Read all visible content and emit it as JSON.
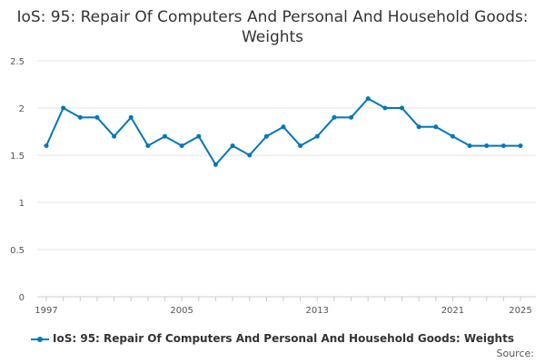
{
  "chart_data": {
    "type": "line",
    "title": "IoS: 95: Repair Of Computers And Personal And Household Goods: Weights",
    "xlabel": "",
    "ylabel": "",
    "x": [
      1997,
      1998,
      1999,
      2000,
      2001,
      2002,
      2003,
      2004,
      2005,
      2006,
      2007,
      2008,
      2009,
      2010,
      2011,
      2012,
      2013,
      2014,
      2015,
      2016,
      2017,
      2018,
      2019,
      2020,
      2021,
      2022,
      2023,
      2024,
      2025
    ],
    "series": [
      {
        "name": "IoS: 95: Repair Of Computers And Personal And Household Goods: Weights",
        "color": "#0077b8",
        "values": [
          1.6,
          2.0,
          1.9,
          1.9,
          1.7,
          1.9,
          1.6,
          1.7,
          1.6,
          1.7,
          1.4,
          1.6,
          1.5,
          1.7,
          1.8,
          1.6,
          1.7,
          1.9,
          1.9,
          2.1,
          2.0,
          2.0,
          1.8,
          1.8,
          1.7,
          1.6,
          1.6,
          1.6,
          1.6
        ]
      }
    ],
    "ylim": [
      0,
      2.5
    ],
    "yticks": [
      0,
      0.5,
      1,
      1.5,
      2,
      2.5
    ],
    "ytick_labels": [
      "0",
      "0.5",
      "1",
      "1.5",
      "2",
      "2.5"
    ],
    "xticks": [
      1997,
      2005,
      2013,
      2021,
      2025
    ],
    "xtick_labels": [
      "1997",
      "2005",
      "2013",
      "2021",
      "2025"
    ],
    "grid": true,
    "legend_position": "bottom",
    "source_label": "Source:"
  }
}
